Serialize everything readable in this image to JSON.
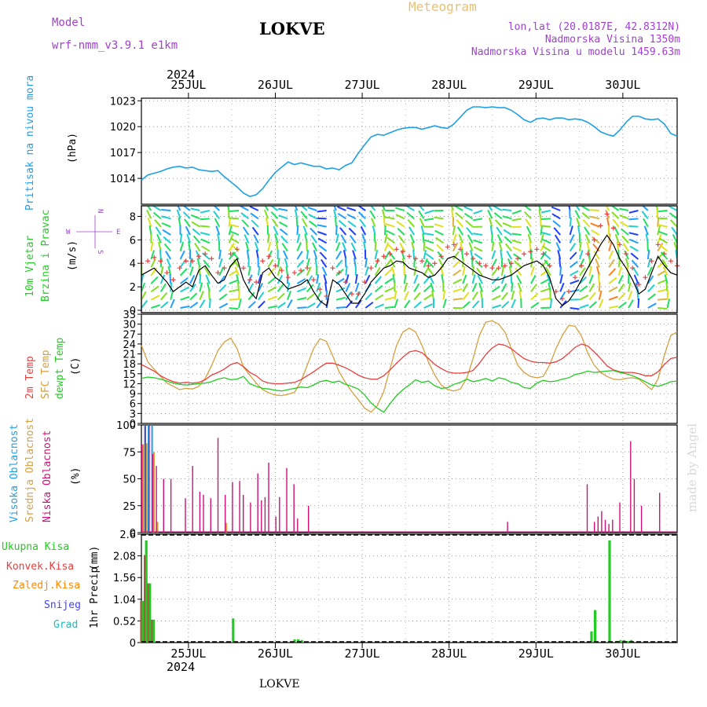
{
  "header": {
    "model_label": "Model",
    "model_value": "wrf-nmm_v3.9.1 e1km",
    "station": "LOKVE",
    "title": "Meteogram",
    "coords": "lon,lat (20.0187E, 42.8312N)",
    "altitude": "Nadmorska Visina 1350m",
    "model_altitude": "Nadmorska Visina u modelu 1459.63m",
    "watermark": "made by Angel",
    "footer_station": "LOKVE"
  },
  "colors": {
    "pressure": "#1ea0e6",
    "wind_speed": "#000000",
    "gust": "#e84040",
    "temp_2m": "#e84040",
    "temp_sfc": "#d4a040",
    "dewpoint": "#22cc22",
    "cloud_high": "#1ea0e6",
    "cloud_mid": "#d4a040",
    "cloud_low": "#cc1177",
    "rain_total": "#22cc22",
    "rain_conv": "#e84040",
    "rain_frozen": "#ff8800",
    "snow": "#4040ff",
    "hail": "#22bbbb"
  },
  "axis": {
    "year": "2024",
    "days": [
      "25JUL",
      "26JUL",
      "27JUL",
      "28JUL",
      "29JUL",
      "30JUL"
    ],
    "compass": {
      "w": "W",
      "e": "E",
      "n": "N",
      "s": "S"
    }
  },
  "chart_data": [
    {
      "type": "line",
      "panel": "pressure",
      "ylabel": "Pritisak na nivou mora",
      "unit": "(hPa)",
      "yticks": [
        "1014",
        "1017",
        "1020",
        "1023"
      ],
      "ylim": [
        1011,
        1023.3
      ],
      "x_hours_start": 0,
      "series": [
        {
          "name": "Pritisak na nivou mora",
          "values": [
            1013.8,
            1014.4,
            1014.6,
            1014.8,
            1015.1,
            1015.3,
            1015.4,
            1015.2,
            1015.3,
            1015.0,
            1014.9,
            1014.8,
            1014.9,
            1014.2,
            1013.6,
            1013.0,
            1012.3,
            1011.9,
            1012.1,
            1012.8,
            1013.8,
            1014.7,
            1015.3,
            1015.9,
            1015.6,
            1015.8,
            1015.6,
            1015.4,
            1015.4,
            1015.1,
            1015.2,
            1015.0,
            1015.5,
            1015.8,
            1016.9,
            1017.9,
            1018.8,
            1019.1,
            1019.0,
            1019.3,
            1019.6,
            1019.8,
            1019.9,
            1019.9,
            1019.7,
            1019.9,
            1020.1,
            1019.9,
            1019.8,
            1020.3,
            1021.1,
            1021.9,
            1022.3,
            1022.3,
            1022.2,
            1022.3,
            1022.2,
            1022.2,
            1021.9,
            1021.4,
            1020.8,
            1020.5,
            1020.9,
            1021.0,
            1020.8,
            1021.0,
            1021.0,
            1020.8,
            1020.9,
            1020.8,
            1020.5,
            1020.0,
            1019.4,
            1019.1,
            1018.9,
            1019.6,
            1020.5,
            1021.2,
            1021.2,
            1020.9,
            1020.8,
            1020.9,
            1020.3,
            1019.2,
            1018.9
          ]
        }
      ]
    },
    {
      "type": "line",
      "panel": "wind",
      "ylabel": "10m Vjetar",
      "ylabel2": "Brzina i Pravac",
      "unit": "(m/s)",
      "yticks": [
        "0",
        "2",
        "4",
        "6",
        "8"
      ],
      "ylim": [
        -0.2,
        8.9
      ],
      "series": [
        {
          "name": "Brzina",
          "values": [
            3.0,
            3.3,
            3.6,
            3.0,
            2.4,
            1.6,
            2.0,
            2.4,
            2.0,
            3.4,
            3.8,
            3.0,
            2.3,
            2.6,
            3.8,
            4.4,
            2.6,
            1.6,
            1.0,
            3.2,
            3.6,
            2.8,
            2.4,
            1.8,
            2.0,
            2.2,
            2.6,
            1.6,
            0.8,
            0.4,
            2.6,
            2.2,
            1.4,
            0.6,
            0.6,
            1.4,
            2.4,
            3.0,
            3.6,
            3.8,
            4.2,
            4.1,
            3.6,
            3.4,
            3.2,
            2.8,
            3.0,
            3.6,
            4.4,
            4.6,
            4.2,
            3.8,
            3.4,
            3.0,
            2.8,
            2.6,
            2.6,
            2.8,
            3.0,
            3.4,
            3.8,
            4.0,
            4.2,
            3.8,
            2.8,
            1.0,
            0.4,
            0.8,
            1.6,
            2.6,
            3.6,
            4.6,
            5.6,
            6.4,
            5.6,
            4.4,
            3.6,
            2.6,
            1.4,
            1.8,
            3.2,
            4.6,
            3.8,
            3.2,
            3.0
          ]
        },
        {
          "name": "Udari",
          "values": [
            4.0,
            4.2,
            4.5,
            4.2,
            3.2,
            2.6,
            3.6,
            4.2,
            4.2,
            4.6,
            4.8,
            4.4,
            3.2,
            3.6,
            4.8,
            5.2,
            3.6,
            2.6,
            2.4,
            4.2,
            4.6,
            3.8,
            3.4,
            2.8,
            3.2,
            3.4,
            3.6,
            2.6,
            1.8,
            1.2,
            3.6,
            3.2,
            2.4,
            1.4,
            1.4,
            2.4,
            3.6,
            4.2,
            4.6,
            4.8,
            5.2,
            5.0,
            4.6,
            4.4,
            4.2,
            3.8,
            4.0,
            4.6,
            5.4,
            5.6,
            5.2,
            4.8,
            4.4,
            4.0,
            3.8,
            3.6,
            3.6,
            3.8,
            4.0,
            4.4,
            4.8,
            5.0,
            5.2,
            4.8,
            3.8,
            1.6,
            1.0,
            1.6,
            2.8,
            3.8,
            4.8,
            6.0,
            7.2,
            8.2,
            7.0,
            5.6,
            4.8,
            3.6,
            2.2,
            2.8,
            4.2,
            5.6,
            4.8,
            4.2,
            3.8
          ]
        }
      ]
    },
    {
      "type": "line",
      "panel": "temperature",
      "ylabel": "2m Temp",
      "ylabel2": "SFC Temp",
      "ylabel3": "dewpt Temp",
      "unit": "(C)",
      "yticks": [
        "0",
        "3",
        "6",
        "9",
        "12",
        "15",
        "18",
        "21",
        "24",
        "27",
        "30",
        "33"
      ],
      "ylim": [
        0,
        33
      ],
      "series": [
        {
          "name": "2m Temp",
          "values": [
            17.8,
            16.8,
            15.8,
            14.4,
            13.4,
            12.6,
            12.2,
            12.4,
            12.2,
            12.4,
            13.2,
            14.6,
            15.4,
            16.4,
            17.8,
            18.4,
            17.2,
            15.4,
            14.4,
            12.8,
            12.2,
            12.0,
            12.0,
            12.2,
            12.4,
            13.2,
            14.4,
            15.6,
            17.0,
            18.2,
            18.2,
            17.6,
            16.8,
            15.8,
            14.6,
            13.8,
            13.4,
            13.4,
            14.4,
            16.2,
            18.2,
            20.0,
            21.6,
            22.0,
            21.4,
            19.6,
            17.8,
            16.6,
            15.6,
            15.2,
            15.2,
            15.4,
            16.0,
            18.2,
            20.8,
            22.8,
            24.0,
            23.6,
            22.6,
            21.0,
            19.6,
            18.8,
            18.4,
            18.4,
            18.2,
            18.6,
            19.6,
            21.2,
            23.0,
            24.0,
            23.4,
            21.6,
            19.6,
            17.4,
            16.2,
            15.6,
            15.4,
            15.4,
            15.0,
            14.4,
            14.4,
            15.6,
            17.8,
            19.6,
            20.0
          ]
        },
        {
          "name": "SFC Temp",
          "values": [
            23.6,
            18.6,
            16.4,
            14.2,
            12.2,
            11.2,
            10.2,
            10.6,
            10.4,
            11.2,
            13.6,
            17.4,
            22.0,
            24.6,
            25.8,
            22.6,
            17.0,
            14.6,
            12.2,
            10.2,
            9.2,
            8.6,
            8.4,
            8.8,
            9.4,
            12.6,
            17.6,
            22.6,
            25.6,
            24.8,
            20.4,
            15.6,
            12.4,
            9.6,
            7.2,
            4.6,
            3.4,
            5.4,
            9.6,
            16.6,
            23.6,
            27.6,
            28.8,
            27.6,
            23.6,
            18.6,
            14.6,
            11.6,
            10.2,
            9.8,
            10.4,
            13.6,
            19.6,
            26.6,
            30.6,
            31.0,
            30.0,
            27.6,
            22.6,
            17.6,
            15.4,
            14.2,
            13.8,
            14.2,
            17.6,
            22.6,
            26.6,
            29.6,
            29.4,
            26.4,
            21.2,
            17.6,
            15.4,
            14.2,
            13.4,
            13.2,
            13.6,
            13.8,
            13.4,
            11.8,
            10.2,
            13.4,
            20.6,
            26.6,
            27.6
          ]
        },
        {
          "name": "dewpt Temp",
          "values": [
            13.6,
            14.0,
            13.8,
            13.4,
            12.8,
            12.2,
            11.8,
            11.6,
            11.8,
            12.0,
            12.2,
            12.6,
            13.4,
            13.8,
            13.2,
            13.4,
            14.2,
            12.0,
            11.2,
            10.6,
            10.4,
            10.0,
            9.8,
            10.2,
            10.6,
            11.0,
            10.8,
            11.6,
            12.6,
            13.0,
            12.4,
            12.8,
            11.8,
            11.2,
            10.4,
            8.6,
            6.2,
            4.6,
            3.4,
            6.0,
            8.4,
            10.2,
            11.6,
            13.2,
            12.4,
            12.8,
            11.4,
            10.6,
            10.8,
            11.8,
            12.4,
            13.4,
            12.6,
            13.0,
            13.6,
            12.8,
            13.8,
            13.4,
            12.4,
            12.0,
            10.8,
            10.6,
            12.2,
            13.0,
            12.6,
            12.8,
            13.4,
            13.8,
            14.8,
            15.2,
            15.8,
            15.4,
            15.6,
            15.8,
            16.0,
            15.4,
            15.0,
            14.4,
            13.6,
            12.6,
            11.6,
            11.2,
            11.8,
            12.6,
            12.8
          ]
        }
      ]
    },
    {
      "type": "bar",
      "panel": "cloud",
      "ylabel": "Visoka Oblacnost",
      "ylabel2": "Srednja Oblacnost",
      "ylabel3": "Niska Oblacnost",
      "unit": "(%)",
      "yticks": [
        "0",
        "25",
        "50",
        "75",
        "100"
      ],
      "ylim": [
        0,
        100
      ],
      "series": [
        {
          "name": "Visoka Oblacnost",
          "values": [
            [
              1,
              100
            ],
            [
              2,
              100
            ],
            [
              3,
              100
            ]
          ]
        },
        {
          "name": "Srednja Oblacnost",
          "values": [
            [
              0,
              82
            ],
            [
              1,
              83
            ],
            [
              3,
              75
            ],
            [
              4,
              10
            ],
            [
              23,
              9
            ]
          ]
        },
        {
          "name": "Niska Oblacnost",
          "values": [
            [
              0,
              82
            ],
            [
              1,
              100
            ],
            [
              2,
              100
            ],
            [
              3,
              73
            ],
            [
              4,
              62
            ],
            [
              6,
              50
            ],
            [
              8,
              50
            ],
            [
              12,
              32
            ],
            [
              14,
              62
            ],
            [
              16,
              38
            ],
            [
              17,
              35
            ],
            [
              19,
              32
            ],
            [
              21,
              88
            ],
            [
              23,
              35
            ],
            [
              25,
              47
            ],
            [
              27,
              48
            ],
            [
              28,
              35
            ],
            [
              30,
              28
            ],
            [
              32,
              55
            ],
            [
              33,
              30
            ],
            [
              34,
              33
            ],
            [
              35,
              65
            ],
            [
              37,
              15
            ],
            [
              38,
              33
            ],
            [
              40,
              60
            ],
            [
              42,
              45
            ],
            [
              43,
              13
            ],
            [
              46,
              25
            ],
            [
              101,
              10
            ],
            [
              123,
              45
            ],
            [
              125,
              10
            ],
            [
              126,
              15
            ],
            [
              127,
              20
            ],
            [
              128,
              12
            ],
            [
              129,
              8
            ],
            [
              130,
              12
            ],
            [
              132,
              28
            ],
            [
              135,
              85
            ],
            [
              136,
              50
            ],
            [
              138,
              25
            ],
            [
              143,
              37
            ]
          ]
        }
      ]
    },
    {
      "type": "bar",
      "panel": "precipitation",
      "ylabel": "1hr Precip",
      "unit": "(mm)",
      "legend": [
        "Ukupna Kisa",
        "Konvek.Kisa",
        "Zaledj.Kisa",
        "Snijeg",
        "Grad"
      ],
      "yticks": [
        "0",
        "0.52",
        "1.04",
        "1.56",
        "2.08",
        "2.6"
      ],
      "ylim": [
        0,
        2.6
      ],
      "series": [
        {
          "name": "Ukupna Kisa",
          "values": [
            [
              0,
              1.0
            ],
            [
              1,
              2.45
            ],
            [
              2,
              1.42
            ],
            [
              3,
              0.55
            ],
            [
              25,
              0.58
            ],
            [
              42,
              0.08
            ],
            [
              43,
              0.08
            ],
            [
              44,
              0.06
            ],
            [
              124,
              0.27
            ],
            [
              125,
              0.78
            ],
            [
              129,
              2.45
            ],
            [
              131,
              0.04
            ],
            [
              132,
              0.06
            ],
            [
              133,
              0.06
            ],
            [
              134,
              0.04
            ],
            [
              135,
              0.06
            ]
          ]
        },
        {
          "name": "Konvek.Kisa",
          "values": [
            [
              0,
              1.0
            ],
            [
              1,
              2.1
            ],
            [
              2,
              1.42
            ],
            [
              3,
              0.55
            ]
          ]
        }
      ]
    }
  ]
}
